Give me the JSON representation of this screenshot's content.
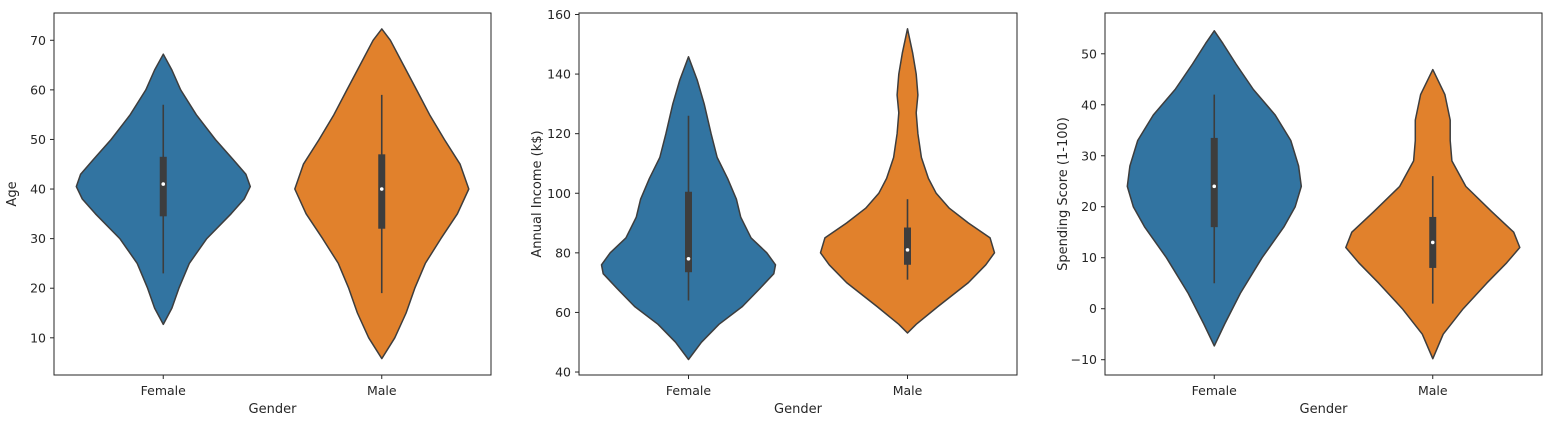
{
  "colors": {
    "Female": "#3274a1",
    "Male": "#e1812c"
  },
  "chart_data": [
    {
      "type": "violin",
      "xlabel": "Gender",
      "ylabel": "Age",
      "categories": [
        "Female",
        "Male"
      ],
      "yticks": [
        10,
        20,
        30,
        40,
        50,
        60,
        70
      ],
      "ylim": [
        2.5,
        75.5
      ],
      "violins": [
        {
          "category": "Female",
          "min_extent": 12.7,
          "max_extent": 67.2,
          "density": [
            [
              12.7,
              0
            ],
            [
              16,
              0.1
            ],
            [
              20,
              0.18
            ],
            [
              25,
              0.3
            ],
            [
              30,
              0.5
            ],
            [
              35,
              0.78
            ],
            [
              38,
              0.93
            ],
            [
              40.5,
              1.0
            ],
            [
              43,
              0.95
            ],
            [
              46,
              0.8
            ],
            [
              50,
              0.6
            ],
            [
              55,
              0.38
            ],
            [
              60,
              0.2
            ],
            [
              64,
              0.1
            ],
            [
              67.2,
              0
            ]
          ],
          "whisker_low": 23,
          "q1": 34.5,
          "median": 41,
          "q3": 46.5,
          "whisker_high": 57
        },
        {
          "category": "Male",
          "min_extent": 5.8,
          "max_extent": 72.3,
          "density": [
            [
              5.8,
              0
            ],
            [
              10,
              0.15
            ],
            [
              15,
              0.28
            ],
            [
              20,
              0.38
            ],
            [
              25,
              0.5
            ],
            [
              30,
              0.68
            ],
            [
              35,
              0.87
            ],
            [
              40,
              1.0
            ],
            [
              45,
              0.9
            ],
            [
              50,
              0.72
            ],
            [
              55,
              0.55
            ],
            [
              60,
              0.4
            ],
            [
              65,
              0.25
            ],
            [
              70,
              0.1
            ],
            [
              72.3,
              0
            ]
          ],
          "whisker_low": 19,
          "q1": 32,
          "median": 40,
          "q3": 47,
          "whisker_high": 59
        }
      ]
    },
    {
      "type": "violin",
      "xlabel": "Gender",
      "ylabel": "Annual Income (k$)",
      "categories": [
        "Female",
        "Male"
      ],
      "yticks": [
        40,
        60,
        80,
        100,
        120,
        140,
        160
      ],
      "ylim": [
        39,
        160.5
      ],
      "violins": [
        {
          "category": "Female",
          "min_extent": 44.2,
          "max_extent": 145.8,
          "density": [
            [
              44.2,
              0
            ],
            [
              50,
              0.15
            ],
            [
              56,
              0.35
            ],
            [
              62,
              0.62
            ],
            [
              68,
              0.82
            ],
            [
              73,
              0.98
            ],
            [
              76,
              1.0
            ],
            [
              80,
              0.9
            ],
            [
              85,
              0.72
            ],
            [
              92,
              0.6
            ],
            [
              98,
              0.55
            ],
            [
              105,
              0.45
            ],
            [
              112,
              0.33
            ],
            [
              120,
              0.26
            ],
            [
              130,
              0.18
            ],
            [
              138,
              0.1
            ],
            [
              145.8,
              0
            ]
          ],
          "whisker_low": 64,
          "q1": 73.5,
          "median": 78,
          "q3": 100.5,
          "whisker_high": 126
        },
        {
          "category": "Male",
          "min_extent": 53.1,
          "max_extent": 155.2,
          "density": [
            [
              53.1,
              0
            ],
            [
              56,
              0.1
            ],
            [
              62,
              0.35
            ],
            [
              70,
              0.7
            ],
            [
              76,
              0.9
            ],
            [
              80,
              1.0
            ],
            [
              85,
              0.95
            ],
            [
              90,
              0.7
            ],
            [
              95,
              0.48
            ],
            [
              100,
              0.33
            ],
            [
              105,
              0.24
            ],
            [
              112,
              0.16
            ],
            [
              120,
              0.12
            ],
            [
              127,
              0.1
            ],
            [
              133,
              0.12
            ],
            [
              140,
              0.1
            ],
            [
              147,
              0.06
            ],
            [
              155.2,
              0
            ]
          ],
          "whisker_low": 71,
          "q1": 76,
          "median": 81,
          "q3": 88.5,
          "whisker_high": 98
        }
      ]
    },
    {
      "type": "violin",
      "xlabel": "Gender",
      "ylabel": "Spending Score (1-100)",
      "categories": [
        "Female",
        "Male"
      ],
      "yticks": [
        -10,
        0,
        10,
        20,
        30,
        40,
        50
      ],
      "ylim": [
        -13,
        58
      ],
      "violins": [
        {
          "category": "Female",
          "min_extent": -7.3,
          "max_extent": 54.5,
          "density": [
            [
              -7.3,
              0
            ],
            [
              -3,
              0.12
            ],
            [
              3,
              0.3
            ],
            [
              10,
              0.55
            ],
            [
              16,
              0.8
            ],
            [
              20,
              0.93
            ],
            [
              24,
              1.0
            ],
            [
              28,
              0.97
            ],
            [
              33,
              0.88
            ],
            [
              38,
              0.7
            ],
            [
              43,
              0.45
            ],
            [
              48,
              0.25
            ],
            [
              52,
              0.1
            ],
            [
              54.5,
              0
            ]
          ],
          "whisker_low": 5,
          "q1": 16,
          "median": 24,
          "q3": 33.5,
          "whisker_high": 42
        },
        {
          "category": "Male",
          "min_extent": -9.8,
          "max_extent": 46.9,
          "density": [
            [
              -9.8,
              0
            ],
            [
              -5,
              0.12
            ],
            [
              0,
              0.35
            ],
            [
              5,
              0.62
            ],
            [
              9,
              0.85
            ],
            [
              12,
              1.0
            ],
            [
              15,
              0.93
            ],
            [
              19,
              0.68
            ],
            [
              24,
              0.38
            ],
            [
              29,
              0.22
            ],
            [
              33,
              0.2
            ],
            [
              37,
              0.2
            ],
            [
              42,
              0.14
            ],
            [
              46.9,
              0
            ]
          ],
          "whisker_low": 1,
          "q1": 8,
          "median": 13,
          "q3": 18,
          "whisker_high": 26
        }
      ]
    }
  ]
}
